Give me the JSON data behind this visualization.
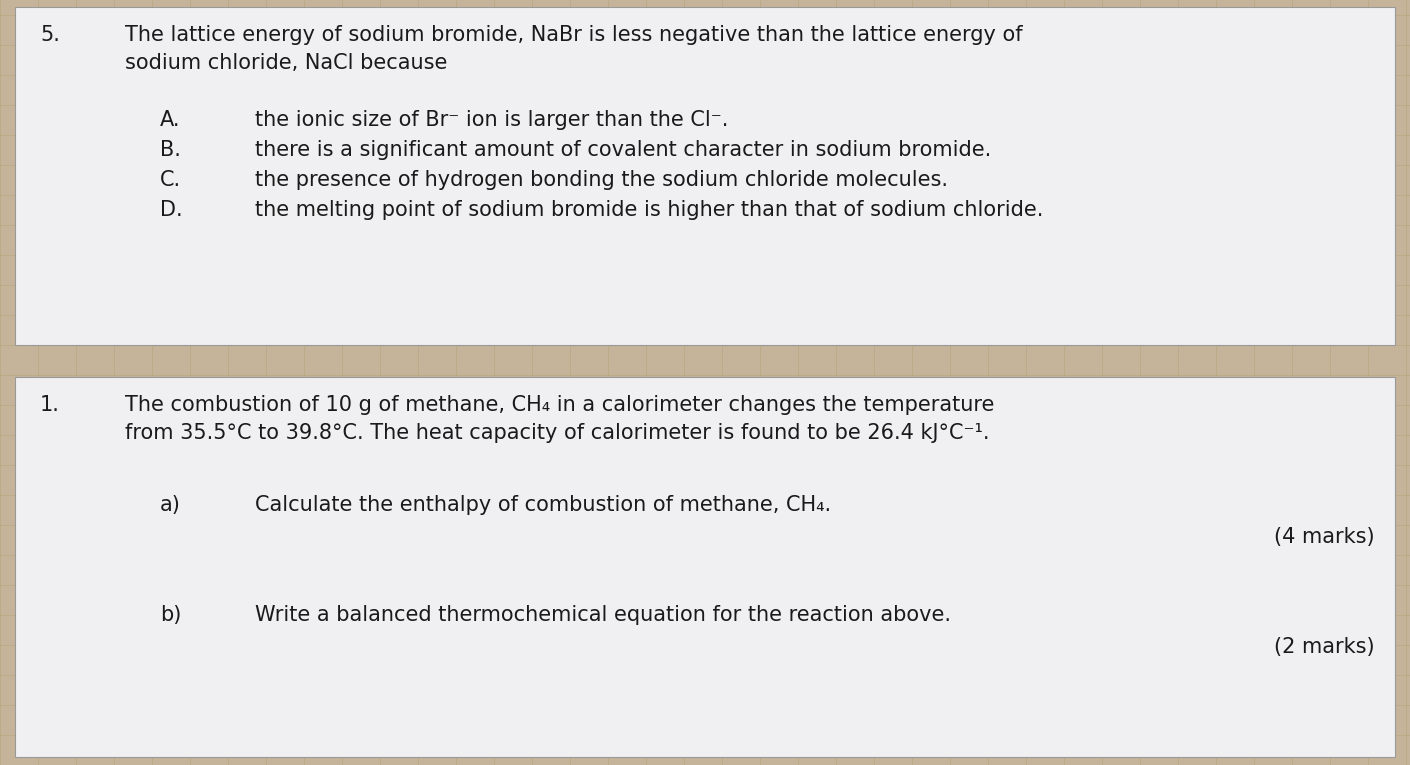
{
  "bg_color": "#c5b49a",
  "top_box_bg": "#f0f0f2",
  "bottom_box_bg": "#f0f0f2",
  "grid_color_bg": "#c5b49a",
  "grid_color_box": "#d8d8d8",
  "text_color": "#1a1a1a",
  "q5_number": "5.",
  "q5_main_line1": "The lattice energy of sodium bromide, NaBr is less negative than the lattice energy of",
  "q5_main_line2": "sodium chloride, NaCl because",
  "q5_options": [
    [
      "A.",
      "the ionic size of Br⁻ ion is larger than the Cl⁻."
    ],
    [
      "B.",
      "there is a significant amount of covalent character in sodium bromide."
    ],
    [
      "C.",
      "the presence of hydrogen bonding the sodium chloride molecules."
    ],
    [
      "D.",
      "the melting point of sodium bromide is higher than that of sodium chloride."
    ]
  ],
  "q1_number": "1.",
  "q1_main_line1": "The combustion of 10 g of methane, CH₄ in a calorimeter changes the temperature",
  "q1_main_line2": "from 35.5°C to 39.8°C. The heat capacity of calorimeter is found to be 26.4 kJ°C⁻¹.",
  "q1_a_label": "a)",
  "q1_a_text": "Calculate the enthalpy of combustion of methane, CH₄.",
  "q1_a_marks": "(4 marks)",
  "q1_b_label": "b)",
  "q1_b_text": "Write a balanced thermochemical equation for the reaction above.",
  "q1_b_marks": "(2 marks)",
  "font_size_main": 15,
  "font_size_opts": 15
}
